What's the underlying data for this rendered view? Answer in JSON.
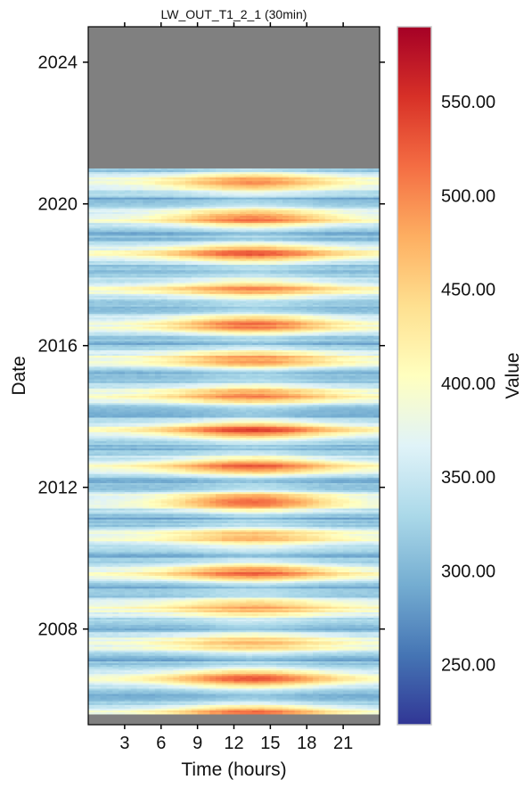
{
  "chart_data": {
    "type": "heatmap",
    "title": "LW_OUT_T1_2_1 (30min)",
    "xlabel": "Time (hours)",
    "ylabel": "Date",
    "colorbar_label": "Value",
    "x_ticks": [
      3,
      6,
      9,
      12,
      15,
      18,
      21
    ],
    "x_tick_labels": [
      "3",
      "6",
      "9",
      "12",
      "15",
      "18",
      "21"
    ],
    "xlim": [
      0,
      24
    ],
    "y_ticks": [
      2008,
      2012,
      2016,
      2020,
      2024
    ],
    "y_tick_labels": [
      "2008",
      "2012",
      "2016",
      "2020",
      "2024"
    ],
    "ylim": [
      2005.3,
      2025.0
    ],
    "data_range_years": [
      2005.6,
      2021.0
    ],
    "missing_color": "#808080",
    "colormap": "RdYlBu_r",
    "colorbar_range": [
      218,
      590
    ],
    "colorbar_ticks": [
      250,
      300,
      350,
      400,
      450,
      500,
      550
    ],
    "colorbar_tick_labels": [
      "250.00",
      "300.00",
      "350.00",
      "400.00",
      "450.00",
      "500.00",
      "550.00"
    ],
    "seasonal_pattern": {
      "winter_night_value": 300,
      "summer_night_value": 385,
      "summer_midday_peak": 525,
      "winter_midday_value": 320,
      "peak_hour": 13.5
    },
    "summer_peaks": [
      {
        "year": 2006.6,
        "peak": 525
      },
      {
        "year": 2007.6,
        "peak": 470
      },
      {
        "year": 2008.6,
        "peak": 475
      },
      {
        "year": 2009.6,
        "peak": 515
      },
      {
        "year": 2010.6,
        "peak": 475
      },
      {
        "year": 2011.6,
        "peak": 535
      },
      {
        "year": 2012.6,
        "peak": 515
      },
      {
        "year": 2013.6,
        "peak": 525
      },
      {
        "year": 2014.6,
        "peak": 495
      },
      {
        "year": 2015.6,
        "peak": 495
      },
      {
        "year": 2016.6,
        "peak": 520
      },
      {
        "year": 2017.6,
        "peak": 485
      },
      {
        "year": 2018.6,
        "peak": 515
      },
      {
        "year": 2019.6,
        "peak": 515
      },
      {
        "year": 2020.6,
        "peak": 500
      }
    ]
  }
}
